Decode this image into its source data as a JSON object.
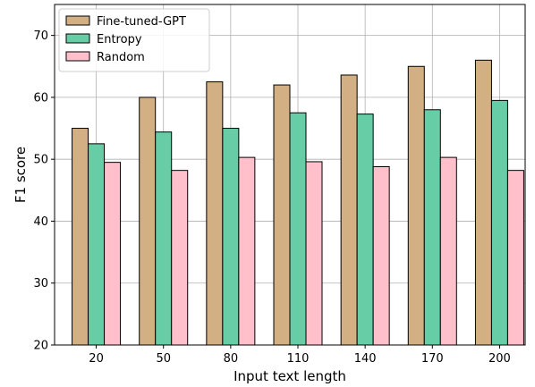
{
  "chart_data": {
    "type": "bar",
    "categories": [
      "20",
      "50",
      "80",
      "110",
      "140",
      "170",
      "200"
    ],
    "series": [
      {
        "name": "Fine-tuned-GPT",
        "color": "#d2b084",
        "values": [
          55.0,
          60.0,
          62.5,
          62.0,
          63.6,
          65.0,
          66.0
        ]
      },
      {
        "name": "Entropy",
        "color": "#66cda6",
        "values": [
          52.5,
          54.4,
          55.0,
          57.5,
          57.3,
          58.0,
          59.5
        ]
      },
      {
        "name": "Random",
        "color": "#ffc0cb",
        "values": [
          49.5,
          48.2,
          50.3,
          49.6,
          48.8,
          50.3,
          48.2
        ]
      }
    ],
    "xlabel": "Input text length",
    "ylabel": "F1 score",
    "ylim": [
      20,
      75
    ],
    "yticks": [
      20,
      30,
      40,
      50,
      60,
      70
    ],
    "grid": true,
    "legend_position": "top-left"
  }
}
